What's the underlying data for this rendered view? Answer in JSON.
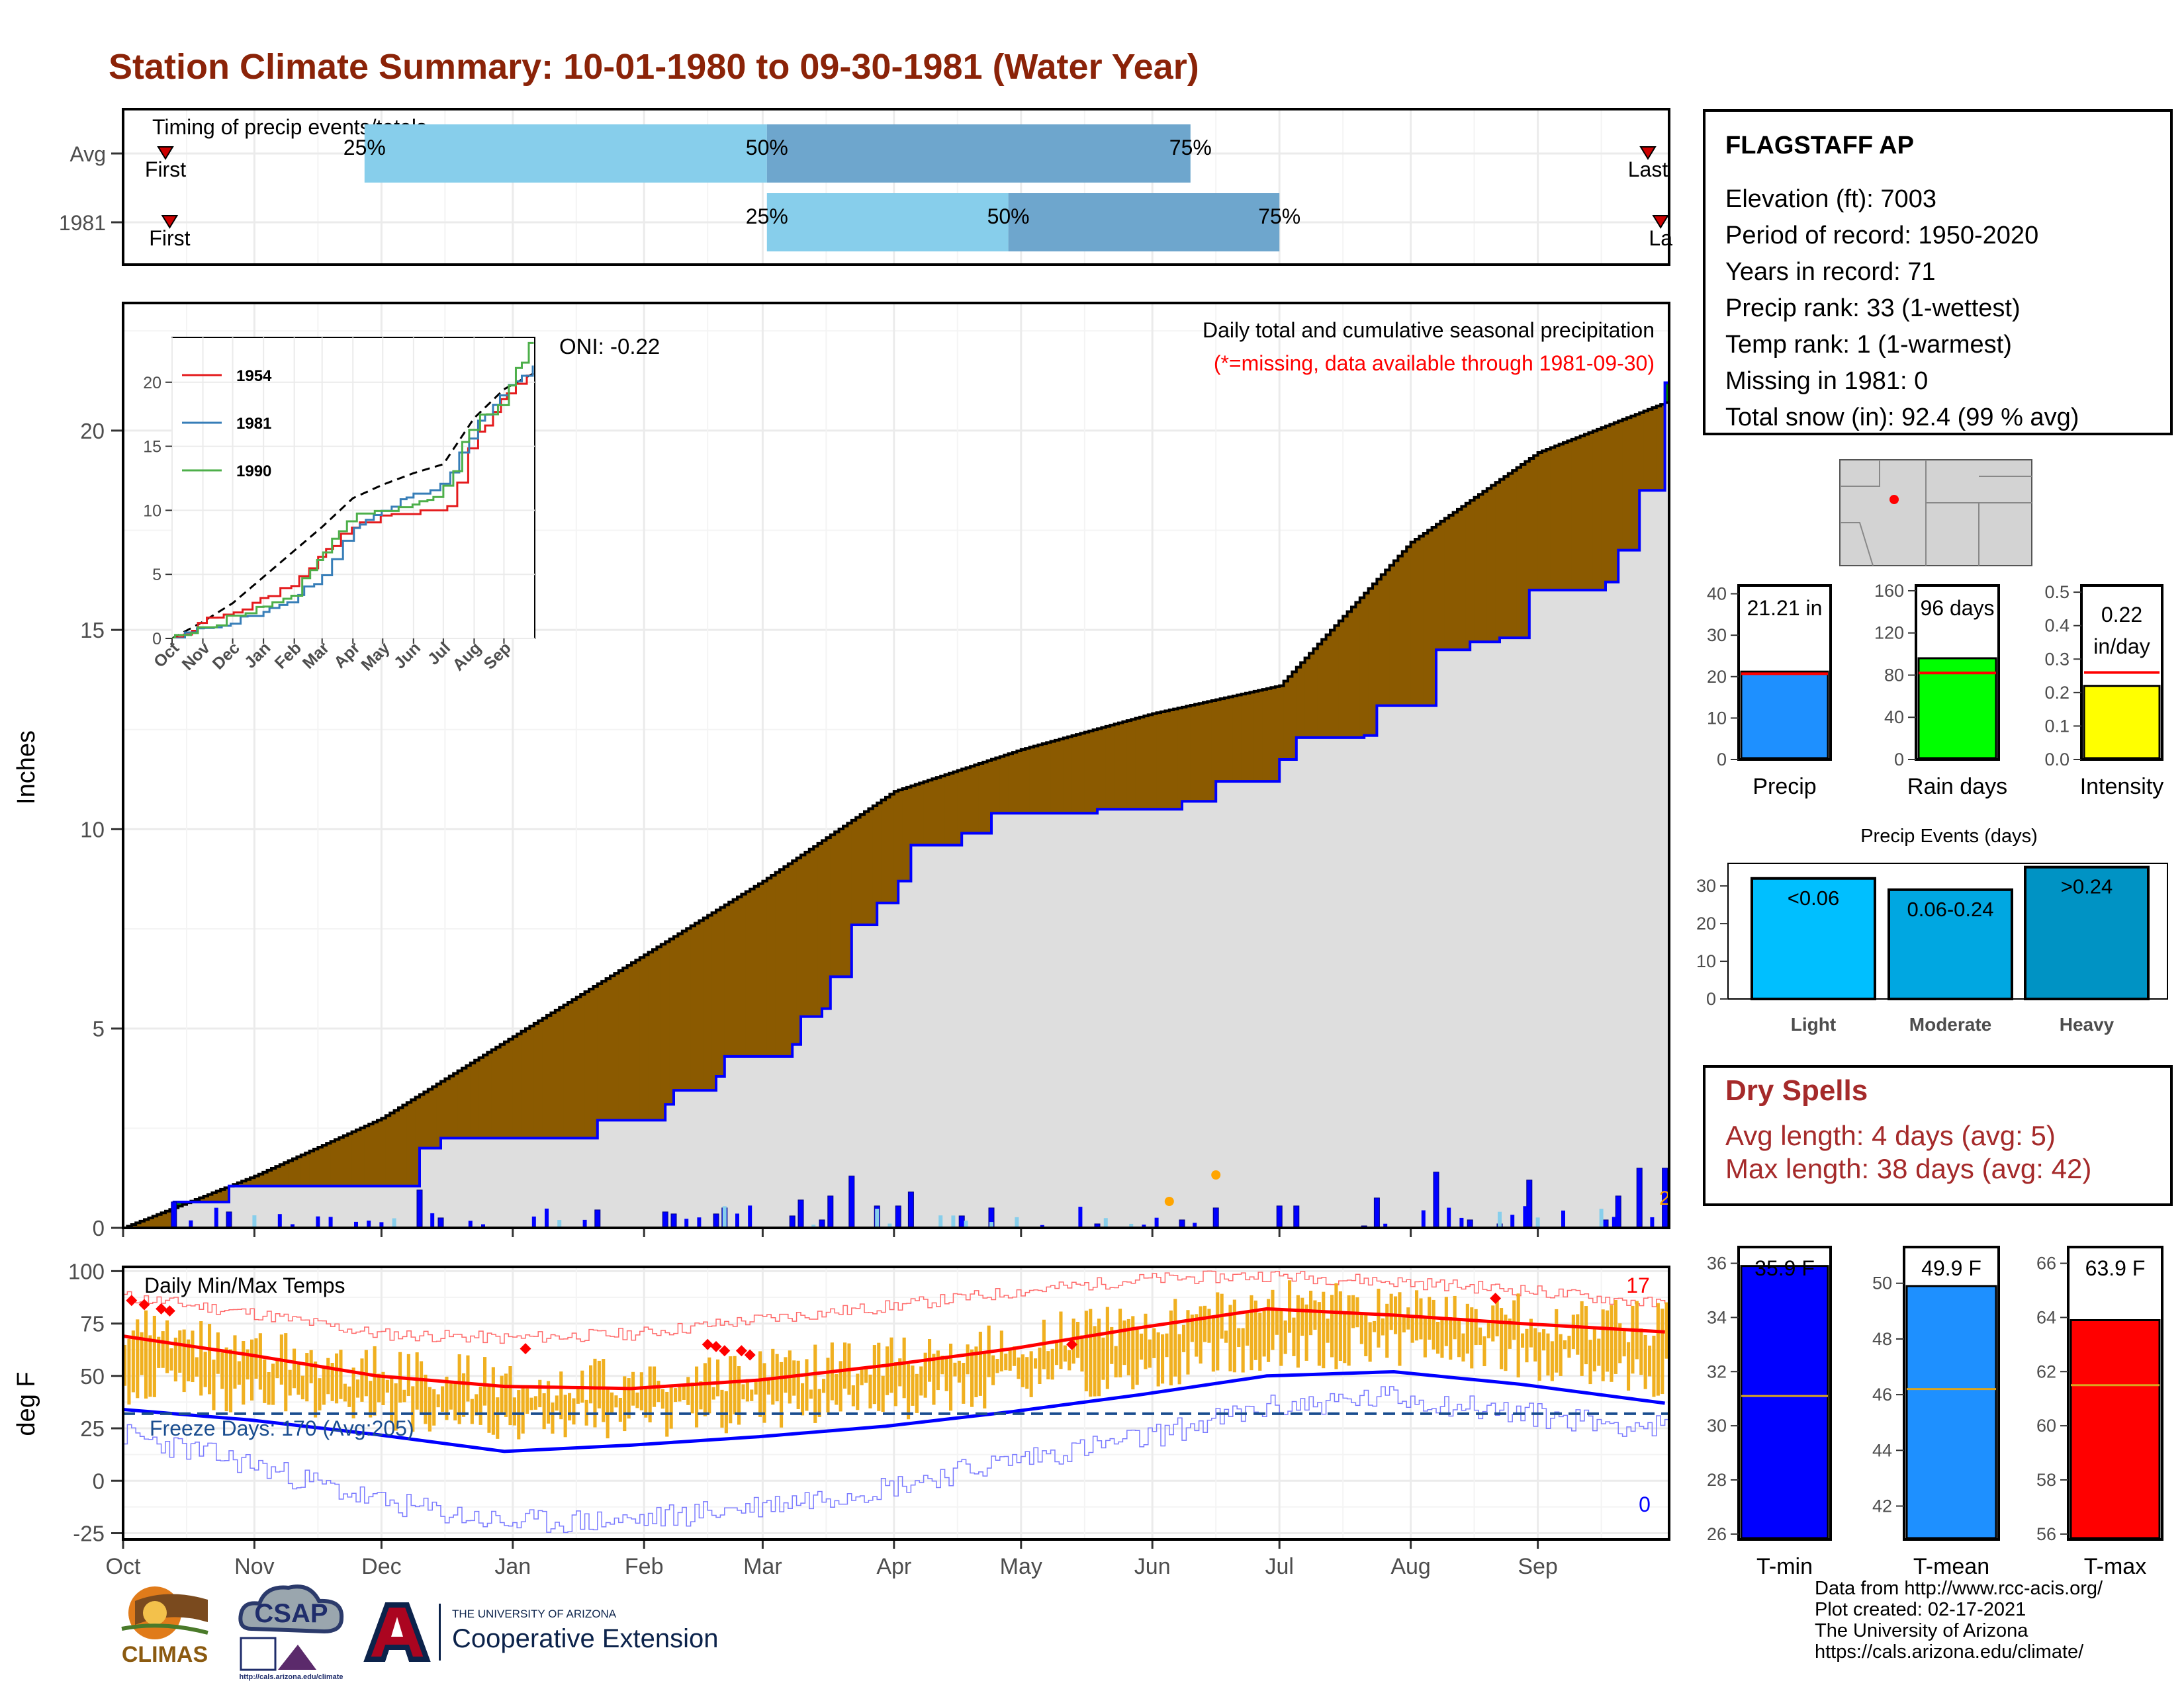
{
  "title": "Station Climate Summary: 10-01-1980 to 09-30-1981 (Water Year)",
  "station": {
    "name": "FLAGSTAFF AP",
    "lines": [
      "Elevation (ft): 7003",
      "Period of record: 1950-2020",
      "Years in record: 71",
      "Precip rank: 33 (1-wettest)",
      "Temp rank: 1 (1-warmest)",
      "Missing in 1981: 0",
      "Total snow (in): 92.4 (99 % avg)"
    ]
  },
  "dry_spells": {
    "title": "Dry Spells",
    "avg": "Avg length: 4 days (avg: 5)",
    "max": "Max length: 38 days (avg: 42)"
  },
  "credits": [
    "Data from http://www.rcc-acis.org/",
    "Plot created: 02-17-2021",
    "The University of Arizona",
    "https://cals.arizona.edu/climate/"
  ],
  "logos": {
    "climas": "CLIMAS",
    "csap": "CSAP",
    "csap_url": "http://cals.arizona.edu/climate",
    "ua_line1": "THE UNIVERSITY OF ARIZONA",
    "ua_line2": "Cooperative Extension"
  },
  "colors": {
    "title": "#8b2308",
    "deficit": "#8b5a00",
    "surplus": "#008000",
    "observed_line": "#0000ff",
    "avg_fill": "#dedede",
    "tmin": "#0000ff",
    "tmean": "#1e90ff",
    "tmax": "#ff0000",
    "precip_bar": "#1e90ff",
    "raindays_bar": "#00ff00",
    "intensity_bar": "#ffff00",
    "light": "#00bfff",
    "moderate": "#00a7e1",
    "heavy": "#0093c4",
    "temp_range_bar": "#f0b020",
    "dry_text": "#a52a2a"
  },
  "chart_data": [
    {
      "type": "bar",
      "name": "timing",
      "title": "Timing of precip events/totals",
      "rows": [
        {
          "label": "Avg",
          "first": "First",
          "last": "Last",
          "q25_day": 57,
          "q50_day": 152,
          "q75_day": 252,
          "first_day": 10,
          "last_day": 360
        },
        {
          "label": "1981",
          "first": "First",
          "last": "La",
          "q25_day": 152,
          "q50_day": 209,
          "q75_day": 273,
          "first_day": 11,
          "last_day": 363
        }
      ],
      "quartile_labels": [
        "25%",
        "50%",
        "75%"
      ]
    },
    {
      "type": "area",
      "name": "cumulative_precip",
      "title": "Daily total and cumulative seasonal precipitation",
      "subtitle": "(*=missing, data available through 1981-09-30)",
      "oni": "ONI: -0.22",
      "ylabel": "Inches",
      "ylim": [
        0,
        23.2
      ],
      "yticks": [
        0,
        5,
        10,
        15,
        20
      ],
      "months": [
        "Oct",
        "Nov",
        "Dec",
        "Jan",
        "Feb",
        "Mar",
        "Apr",
        "May",
        "Jun",
        "Jul",
        "Aug",
        "Sep"
      ],
      "avg_cumulative": [
        [
          0,
          0
        ],
        [
          31,
          1.3
        ],
        [
          61,
          2.75
        ],
        [
          92,
          4.8
        ],
        [
          123,
          6.85
        ],
        [
          151,
          8.7
        ],
        [
          182,
          10.95
        ],
        [
          212,
          12.0
        ],
        [
          243,
          12.9
        ],
        [
          273,
          13.6
        ],
        [
          304,
          17.2
        ],
        [
          334,
          19.45
        ],
        [
          364,
          20.7
        ]
      ],
      "obs_cumulative": [
        [
          0,
          0
        ],
        [
          12,
          0.65
        ],
        [
          25,
          1.05
        ],
        [
          68,
          1.05
        ],
        [
          70,
          2.0
        ],
        [
          75,
          2.25
        ],
        [
          108,
          2.25
        ],
        [
          112,
          2.7
        ],
        [
          125,
          2.7
        ],
        [
          128,
          3.1
        ],
        [
          130,
          3.45
        ],
        [
          140,
          3.8
        ],
        [
          142,
          4.3
        ],
        [
          158,
          4.6
        ],
        [
          160,
          5.3
        ],
        [
          165,
          5.5
        ],
        [
          167,
          6.3
        ],
        [
          172,
          7.6
        ],
        [
          178,
          8.15
        ],
        [
          183,
          8.7
        ],
        [
          186,
          9.6
        ],
        [
          198,
          9.9
        ],
        [
          205,
          10.4
        ],
        [
          230,
          10.5
        ],
        [
          250,
          10.7
        ],
        [
          258,
          11.2
        ],
        [
          273,
          11.75
        ],
        [
          277,
          12.3
        ],
        [
          293,
          12.35
        ],
        [
          296,
          13.1
        ],
        [
          307,
          13.1
        ],
        [
          310,
          14.5
        ],
        [
          318,
          14.7
        ],
        [
          325,
          14.8
        ],
        [
          332,
          16.0
        ],
        [
          350,
          16.2
        ],
        [
          353,
          17.0
        ],
        [
          358,
          18.5
        ],
        [
          364,
          21.2
        ]
      ],
      "daily_max_value_label": "2"
    },
    {
      "type": "line",
      "name": "inset_comparison",
      "series": [
        {
          "name": "1954",
          "color": "#e41a1c"
        },
        {
          "name": "1981",
          "color": "#377eb8"
        },
        {
          "name": "1990",
          "color": "#4daf4a"
        }
      ],
      "months": [
        "Oct",
        "Nov",
        "Dec",
        "Jan",
        "Feb",
        "Mar",
        "Apr",
        "May",
        "Jun",
        "Jul",
        "Aug",
        "Sep"
      ],
      "ylim": [
        0,
        23.5
      ],
      "yticks": [
        0,
        5,
        10,
        15,
        20
      ]
    },
    {
      "type": "bar",
      "name": "precip_total",
      "label": "Precip",
      "value": 21.21,
      "value_label": "21.21 in",
      "avg": 20.7,
      "ylim": [
        0,
        42
      ],
      "yticks": [
        0,
        10,
        20,
        30,
        40
      ]
    },
    {
      "type": "bar",
      "name": "rain_days",
      "label": "Rain days",
      "value": 96,
      "value_label": "96 days",
      "avg": 82,
      "ylim": [
        0,
        165
      ],
      "yticks": [
        0,
        40,
        80,
        120,
        160
      ]
    },
    {
      "type": "bar",
      "name": "intensity",
      "label": "Intensity",
      "value": 0.22,
      "value_label": [
        "0.22",
        "in/day"
      ],
      "avg": 0.26,
      "ylim": [
        0,
        0.52
      ],
      "yticks": [
        0.0,
        0.1,
        0.2,
        0.3,
        0.4,
        0.5
      ]
    },
    {
      "type": "bar",
      "name": "precip_events",
      "title": "Precip Events (days)",
      "categories": [
        "Light",
        "Moderate",
        "Heavy"
      ],
      "bin_labels": [
        "<0.06",
        "0.06-0.24",
        ">0.24"
      ],
      "values": [
        32,
        29,
        35
      ],
      "ylim": [
        0,
        36
      ],
      "yticks": [
        0,
        10,
        20,
        30
      ]
    },
    {
      "type": "line",
      "name": "daily_temps",
      "title": "Daily Min/Max Temps",
      "ylabel": "deg F",
      "ylim": [
        -28,
        102
      ],
      "yticks": [
        -25,
        0,
        25,
        50,
        75,
        100
      ],
      "freeze_label": "Freeze Days: 170 (Avg:205)",
      "freeze_line": 32,
      "record_high_count": "17",
      "record_low_count": "0",
      "months": [
        "Oct",
        "Nov",
        "Dec",
        "Jan",
        "Feb",
        "Mar",
        "Apr",
        "May",
        "Jun",
        "Jul",
        "Aug",
        "Sep"
      ],
      "avg_high": [
        [
          0,
          69
        ],
        [
          30,
          60
        ],
        [
          60,
          50
        ],
        [
          90,
          45
        ],
        [
          120,
          44
        ],
        [
          150,
          48
        ],
        [
          180,
          55
        ],
        [
          210,
          63
        ],
        [
          240,
          73
        ],
        [
          270,
          82
        ],
        [
          300,
          79
        ],
        [
          330,
          75
        ],
        [
          364,
          71
        ]
      ],
      "avg_low": [
        [
          0,
          34
        ],
        [
          30,
          29
        ],
        [
          60,
          22
        ],
        [
          90,
          14
        ],
        [
          120,
          17
        ],
        [
          150,
          21
        ],
        [
          180,
          26
        ],
        [
          210,
          33
        ],
        [
          240,
          41
        ],
        [
          270,
          50
        ],
        [
          300,
          52
        ],
        [
          330,
          46
        ],
        [
          364,
          37
        ]
      ],
      "record_high": [
        [
          0,
          88
        ],
        [
          30,
          80
        ],
        [
          60,
          70
        ],
        [
          90,
          68
        ],
        [
          120,
          70
        ],
        [
          150,
          77
        ],
        [
          180,
          83
        ],
        [
          210,
          90
        ],
        [
          240,
          96
        ],
        [
          270,
          98
        ],
        [
          300,
          95
        ],
        [
          330,
          91
        ],
        [
          364,
          84
        ]
      ],
      "record_low": [
        [
          0,
          22
        ],
        [
          30,
          8
        ],
        [
          60,
          -10
        ],
        [
          90,
          -20
        ],
        [
          120,
          -19
        ],
        [
          150,
          -12
        ],
        [
          180,
          -3
        ],
        [
          210,
          10
        ],
        [
          240,
          20
        ],
        [
          270,
          35
        ],
        [
          300,
          40
        ],
        [
          330,
          32
        ],
        [
          364,
          25
        ]
      ]
    },
    {
      "type": "bar",
      "name": "tmin",
      "label": "T-min",
      "value": 35.9,
      "value_label": "35.9 F",
      "avg": 31.1,
      "ylim": [
        25.8,
        36.6
      ],
      "yticks": [
        26,
        28,
        30,
        32,
        34,
        36
      ]
    },
    {
      "type": "bar",
      "name": "tmean",
      "label": "T-mean",
      "value": 49.9,
      "value_label": "49.9 F",
      "avg": 46.2,
      "ylim": [
        40.8,
        51.3
      ],
      "yticks": [
        42,
        44,
        46,
        48,
        50
      ]
    },
    {
      "type": "bar",
      "name": "tmax",
      "label": "T-max",
      "value": 63.9,
      "value_label": "63.9 F",
      "avg": 61.5,
      "ylim": [
        55.8,
        66.6
      ],
      "yticks": [
        56,
        58,
        60,
        62,
        64,
        66
      ]
    }
  ]
}
